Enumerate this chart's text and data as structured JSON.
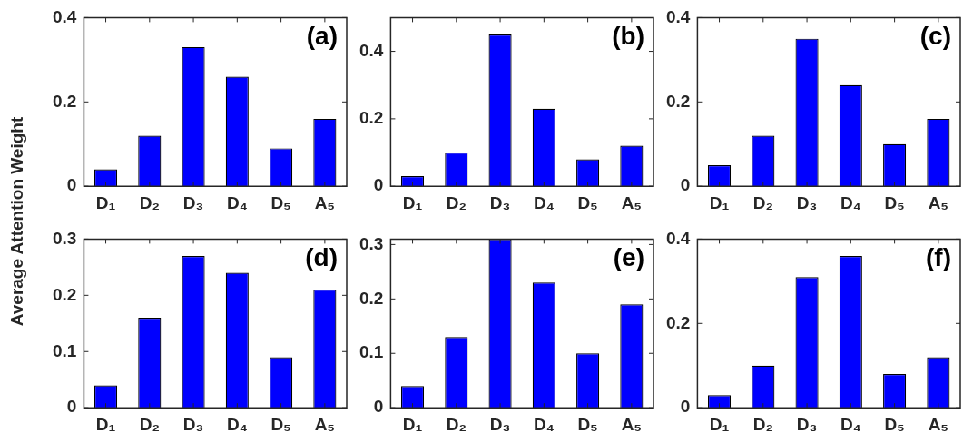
{
  "chart_data": [
    {
      "type": "bar",
      "ylabel": "Average Attention Weight",
      "categories": [
        "D₁",
        "D₂",
        "D₃",
        "D₄",
        "D₅",
        "A₅"
      ],
      "values": [
        0.04,
        0.12,
        0.33,
        0.26,
        0.09,
        0.16
      ],
      "color": "#0000ff",
      "ylim": [
        0,
        0.4
      ],
      "yticks": [
        0,
        0.2,
        0.4
      ],
      "grid": false,
      "annotations": [
        "(a)"
      ]
    },
    {
      "type": "bar",
      "categories": [
        "D₁",
        "D₂",
        "D₃",
        "D₄",
        "D₅",
        "A₅"
      ],
      "values": [
        0.03,
        0.1,
        0.45,
        0.23,
        0.08,
        0.12
      ],
      "color": "#0000ff",
      "ylim": [
        0,
        0.5
      ],
      "yticks": [
        0,
        0.2,
        0.4
      ],
      "grid": false,
      "annotations": [
        "(b)"
      ]
    },
    {
      "type": "bar",
      "categories": [
        "D₁",
        "D₂",
        "D₃",
        "D₄",
        "D₅",
        "A₅"
      ],
      "values": [
        0.05,
        0.12,
        0.35,
        0.24,
        0.1,
        0.16
      ],
      "color": "#0000ff",
      "ylim": [
        0,
        0.4
      ],
      "yticks": [
        0,
        0.2,
        0.4
      ],
      "grid": false,
      "annotations": [
        "(c)"
      ]
    },
    {
      "type": "bar",
      "categories": [
        "D₁",
        "D₂",
        "D₃",
        "D₄",
        "D₅",
        "A₅"
      ],
      "values": [
        0.04,
        0.16,
        0.27,
        0.24,
        0.09,
        0.21
      ],
      "color": "#0000ff",
      "ylim": [
        0,
        0.3
      ],
      "yticks": [
        0,
        0.1,
        0.2,
        0.3
      ],
      "grid": false,
      "annotations": [
        "(d)"
      ]
    },
    {
      "type": "bar",
      "categories": [
        "D₁",
        "D₂",
        "D₃",
        "D₄",
        "D₅",
        "A₅"
      ],
      "values": [
        0.04,
        0.13,
        0.31,
        0.23,
        0.1,
        0.19
      ],
      "color": "#0000ff",
      "ylim": [
        0,
        0.31
      ],
      "yticks": [
        0,
        0.1,
        0.2,
        0.3
      ],
      "grid": false,
      "annotations": [
        "(e)"
      ]
    },
    {
      "type": "bar",
      "categories": [
        "D₁",
        "D₂",
        "D₃",
        "D₄",
        "D₅",
        "A₅"
      ],
      "values": [
        0.03,
        0.1,
        0.31,
        0.36,
        0.08,
        0.12
      ],
      "color": "#0000ff",
      "ylim": [
        0,
        0.4
      ],
      "yticks": [
        0,
        0.2,
        0.4
      ],
      "grid": false,
      "annotations": [
        "(f)"
      ]
    }
  ]
}
